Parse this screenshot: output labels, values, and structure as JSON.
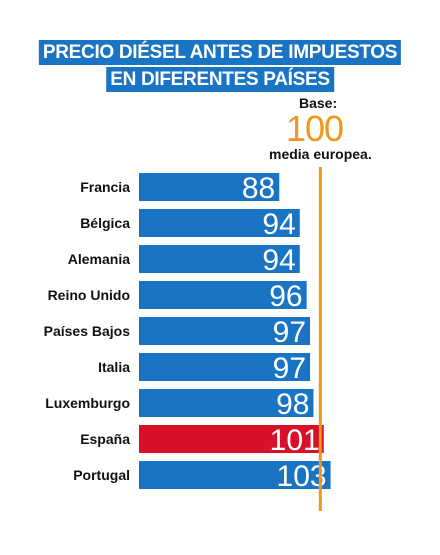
{
  "title_line1": "PRECIO DIÉSEL ANTES DE IMPUESTOS",
  "title_line2": "EN DIFERENTES PAÍSES",
  "base_label_top": "Base:",
  "base_value_text": "100",
  "base_label_bottom": "media europea.",
  "colors": {
    "bar": "#1a74c4",
    "highlight": "#d7112a",
    "reference_line": "#f0961c",
    "title_bg": "#1a74c4"
  },
  "chart_data": {
    "type": "bar",
    "orientation": "horizontal",
    "title": "PRECIO DIÉSEL ANTES DE IMPUESTOS EN DIFERENTES PAÍSES",
    "categories": [
      "Francia",
      "Bélgica",
      "Alemania",
      "Reino Unido",
      "Países Bajos",
      "Italia",
      "Luxemburgo",
      "España",
      "Portugal"
    ],
    "values": [
      88,
      94,
      94,
      96,
      97,
      97,
      98,
      101,
      103
    ],
    "highlight_category": "España",
    "reference_value": 100,
    "xlim": [
      47,
      104
    ],
    "grid": false
  }
}
